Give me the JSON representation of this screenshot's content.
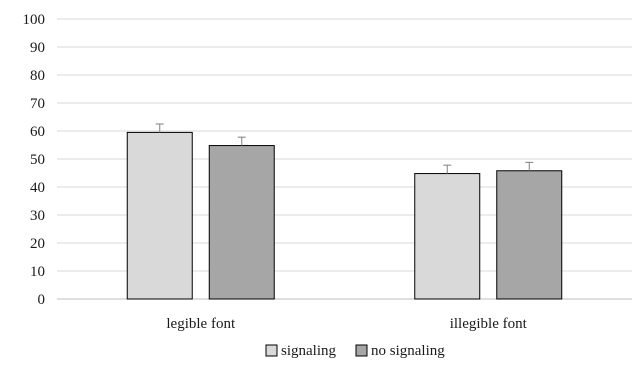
{
  "chart_data": {
    "type": "bar",
    "title": "",
    "xlabel": "",
    "ylabel": "",
    "ylim": [
      0,
      100
    ],
    "yticks": [
      0,
      10,
      20,
      30,
      40,
      50,
      60,
      70,
      80,
      90,
      100
    ],
    "grid": true,
    "legend_position": "bottom",
    "categories": [
      "legible font",
      "illegible font"
    ],
    "series": [
      {
        "name": "signaling",
        "values": [
          59.5,
          44.8
        ],
        "errors": [
          3.0,
          3.0
        ],
        "color": "#d9d9d9"
      },
      {
        "name": "no signaling",
        "values": [
          54.8,
          45.8
        ],
        "errors": [
          3.0,
          3.0
        ],
        "color": "#a6a6a6"
      }
    ]
  }
}
